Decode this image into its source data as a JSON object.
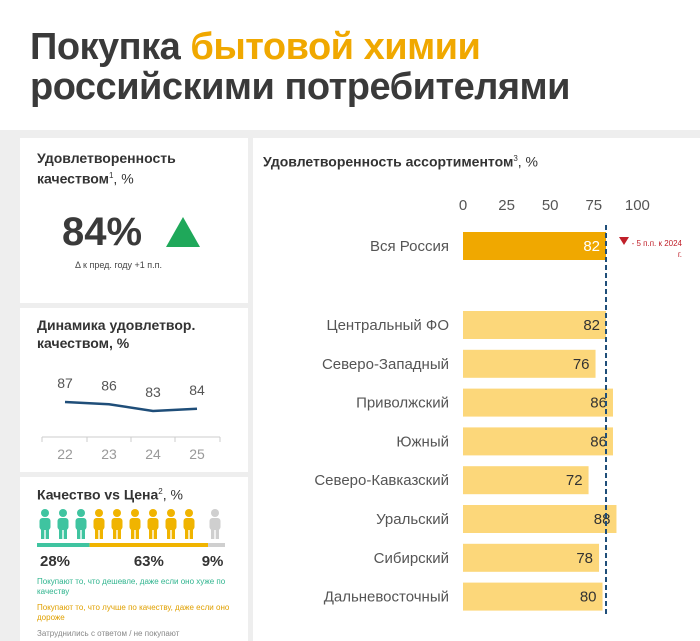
{
  "title": {
    "part1": "Покупка",
    "highlight": "бытовой химии",
    "part2": "российскими потребителями"
  },
  "quality_satisfaction": {
    "title": "Удовлетворенность качеством",
    "footnote": "1",
    "unit": ", %",
    "value": 84,
    "value_label": "84%",
    "change_note": "Δ к пред. году +1 п.п."
  },
  "chart_data": [
    {
      "type": "line",
      "title": "Динамика удовлетвор. качеством, %",
      "categories": [
        "22",
        "23",
        "24",
        "25"
      ],
      "values": [
        87,
        86,
        83,
        84
      ],
      "color": "#1f4e79"
    },
    {
      "type": "bar",
      "title": "Удовлетворенность ассортиментом",
      "footnote": "3",
      "unit": ", %",
      "categories": [
        "Вся Россия",
        "Центральный ФО",
        "Северо-Западный",
        "Приволжский",
        "Южный",
        "Северо-Кавказский",
        "Уральский",
        "Сибирский",
        "Дальневосточный"
      ],
      "values": [
        82,
        82,
        76,
        86,
        86,
        72,
        88,
        78,
        80
      ],
      "colors": [
        "#f0a800",
        "#fcd77a",
        "#fcd77a",
        "#fcd77a",
        "#fcd77a",
        "#fcd77a",
        "#fcd77a",
        "#fcd77a",
        "#fcd77a"
      ],
      "xlim": [
        0,
        100
      ],
      "xticks": [
        0,
        25,
        50,
        75,
        100
      ],
      "reference_line": 82,
      "annotation": "- 5 п.п. к 2024 г."
    }
  ],
  "quality_vs_price": {
    "title": "Качество vs Цена",
    "footnote": "2",
    "unit": ", %",
    "values": [
      28,
      63,
      9
    ],
    "value_labels": [
      "28%",
      "63%",
      "9%"
    ],
    "colors": [
      "#3fc4a0",
      "#f0b400",
      "#cfcfcf"
    ],
    "descriptions": [
      "Покупают то, что дешевле, даже если оно хуже по качеству",
      "Покупают то, что лучше по качеству, даже если оно дороже",
      "Затруднились с ответом / не покупают"
    ]
  }
}
